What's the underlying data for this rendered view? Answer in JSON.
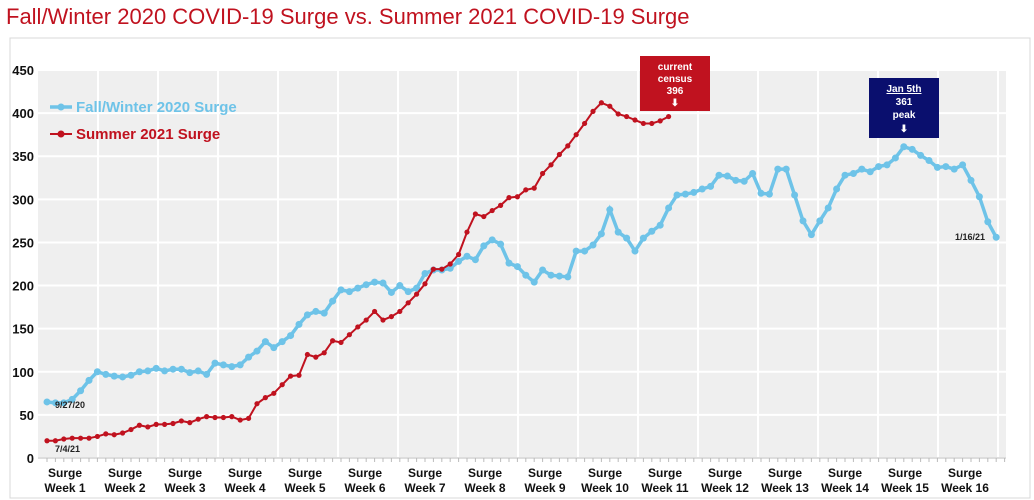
{
  "chart_data": {
    "type": "line",
    "title": "Fall/Winter 2020 COVID-19 Surge vs. Summer 2021 COVID-19 Surge",
    "ylim": [
      0,
      450
    ],
    "yticks": [
      "0",
      "50",
      "100",
      "150",
      "200",
      "250",
      "300",
      "350",
      "400",
      "450"
    ],
    "xticks": [
      "Surge Week 1",
      "Surge Week 2",
      "Surge Week 3",
      "Surge Week 4",
      "Surge Week 5",
      "Surge Week 6",
      "Surge Week 7",
      "Surge Week 8",
      "Surge Week 9",
      "Surge Week 10",
      "Surge Week 11",
      "Surge Week 12",
      "Surge Week 13",
      "Surge Week 14",
      "Surge Week 15",
      "Surge Week 16"
    ],
    "grid": true,
    "legend_position": "top-left",
    "series": [
      {
        "name": "Fall/Winter 2020 Surge",
        "color": "#6ec3e8",
        "values": [
          65,
          64,
          64,
          68,
          78,
          90,
          100,
          97,
          95,
          94,
          96,
          100,
          101,
          104,
          101,
          103,
          103,
          99,
          101,
          97,
          110,
          108,
          106,
          108,
          117,
          124,
          135,
          128,
          135,
          142,
          155,
          166,
          170,
          168,
          182,
          195,
          193,
          197,
          201,
          204,
          203,
          192,
          200,
          193,
          197,
          214,
          218,
          218,
          220,
          228,
          234,
          230,
          246,
          253,
          248,
          226,
          222,
          212,
          204,
          218,
          212,
          211,
          210,
          240,
          240,
          247,
          260,
          288,
          262,
          255,
          240,
          255,
          263,
          270,
          290,
          305,
          306,
          308,
          312,
          315,
          328,
          327,
          322,
          321,
          330,
          307,
          306,
          335,
          335,
          305,
          275,
          259,
          275,
          290,
          312,
          328,
          330,
          335,
          332,
          338,
          340,
          348,
          361,
          358,
          351,
          345,
          337,
          338,
          335,
          340,
          322,
          303,
          274,
          256
        ]
      },
      {
        "name": "Summer 2021 Surge",
        "color": "#c0121f",
        "values": [
          20,
          20,
          22,
          23,
          23,
          23,
          25,
          28,
          27,
          29,
          33,
          38,
          36,
          39,
          39,
          40,
          43,
          41,
          45,
          48,
          47,
          47,
          48,
          44,
          46,
          63,
          70,
          75,
          85,
          95,
          96,
          120,
          117,
          122,
          136,
          134,
          143,
          152,
          160,
          170,
          160,
          164,
          170,
          180,
          190,
          202,
          219,
          219,
          225,
          236,
          262,
          283,
          280,
          287,
          293,
          302,
          303,
          311,
          313,
          330,
          340,
          352,
          362,
          375,
          388,
          402,
          412,
          408,
          399,
          396,
          392,
          388,
          388,
          391,
          396
        ]
      }
    ],
    "annotations": {
      "blue_start": "9/27/20",
      "red_start": "7/4/21",
      "blue_end": "1/16/21",
      "current_box": [
        "current",
        "census",
        "396"
      ],
      "peak_box": [
        "Jan 5th",
        "361",
        "peak"
      ]
    }
  }
}
